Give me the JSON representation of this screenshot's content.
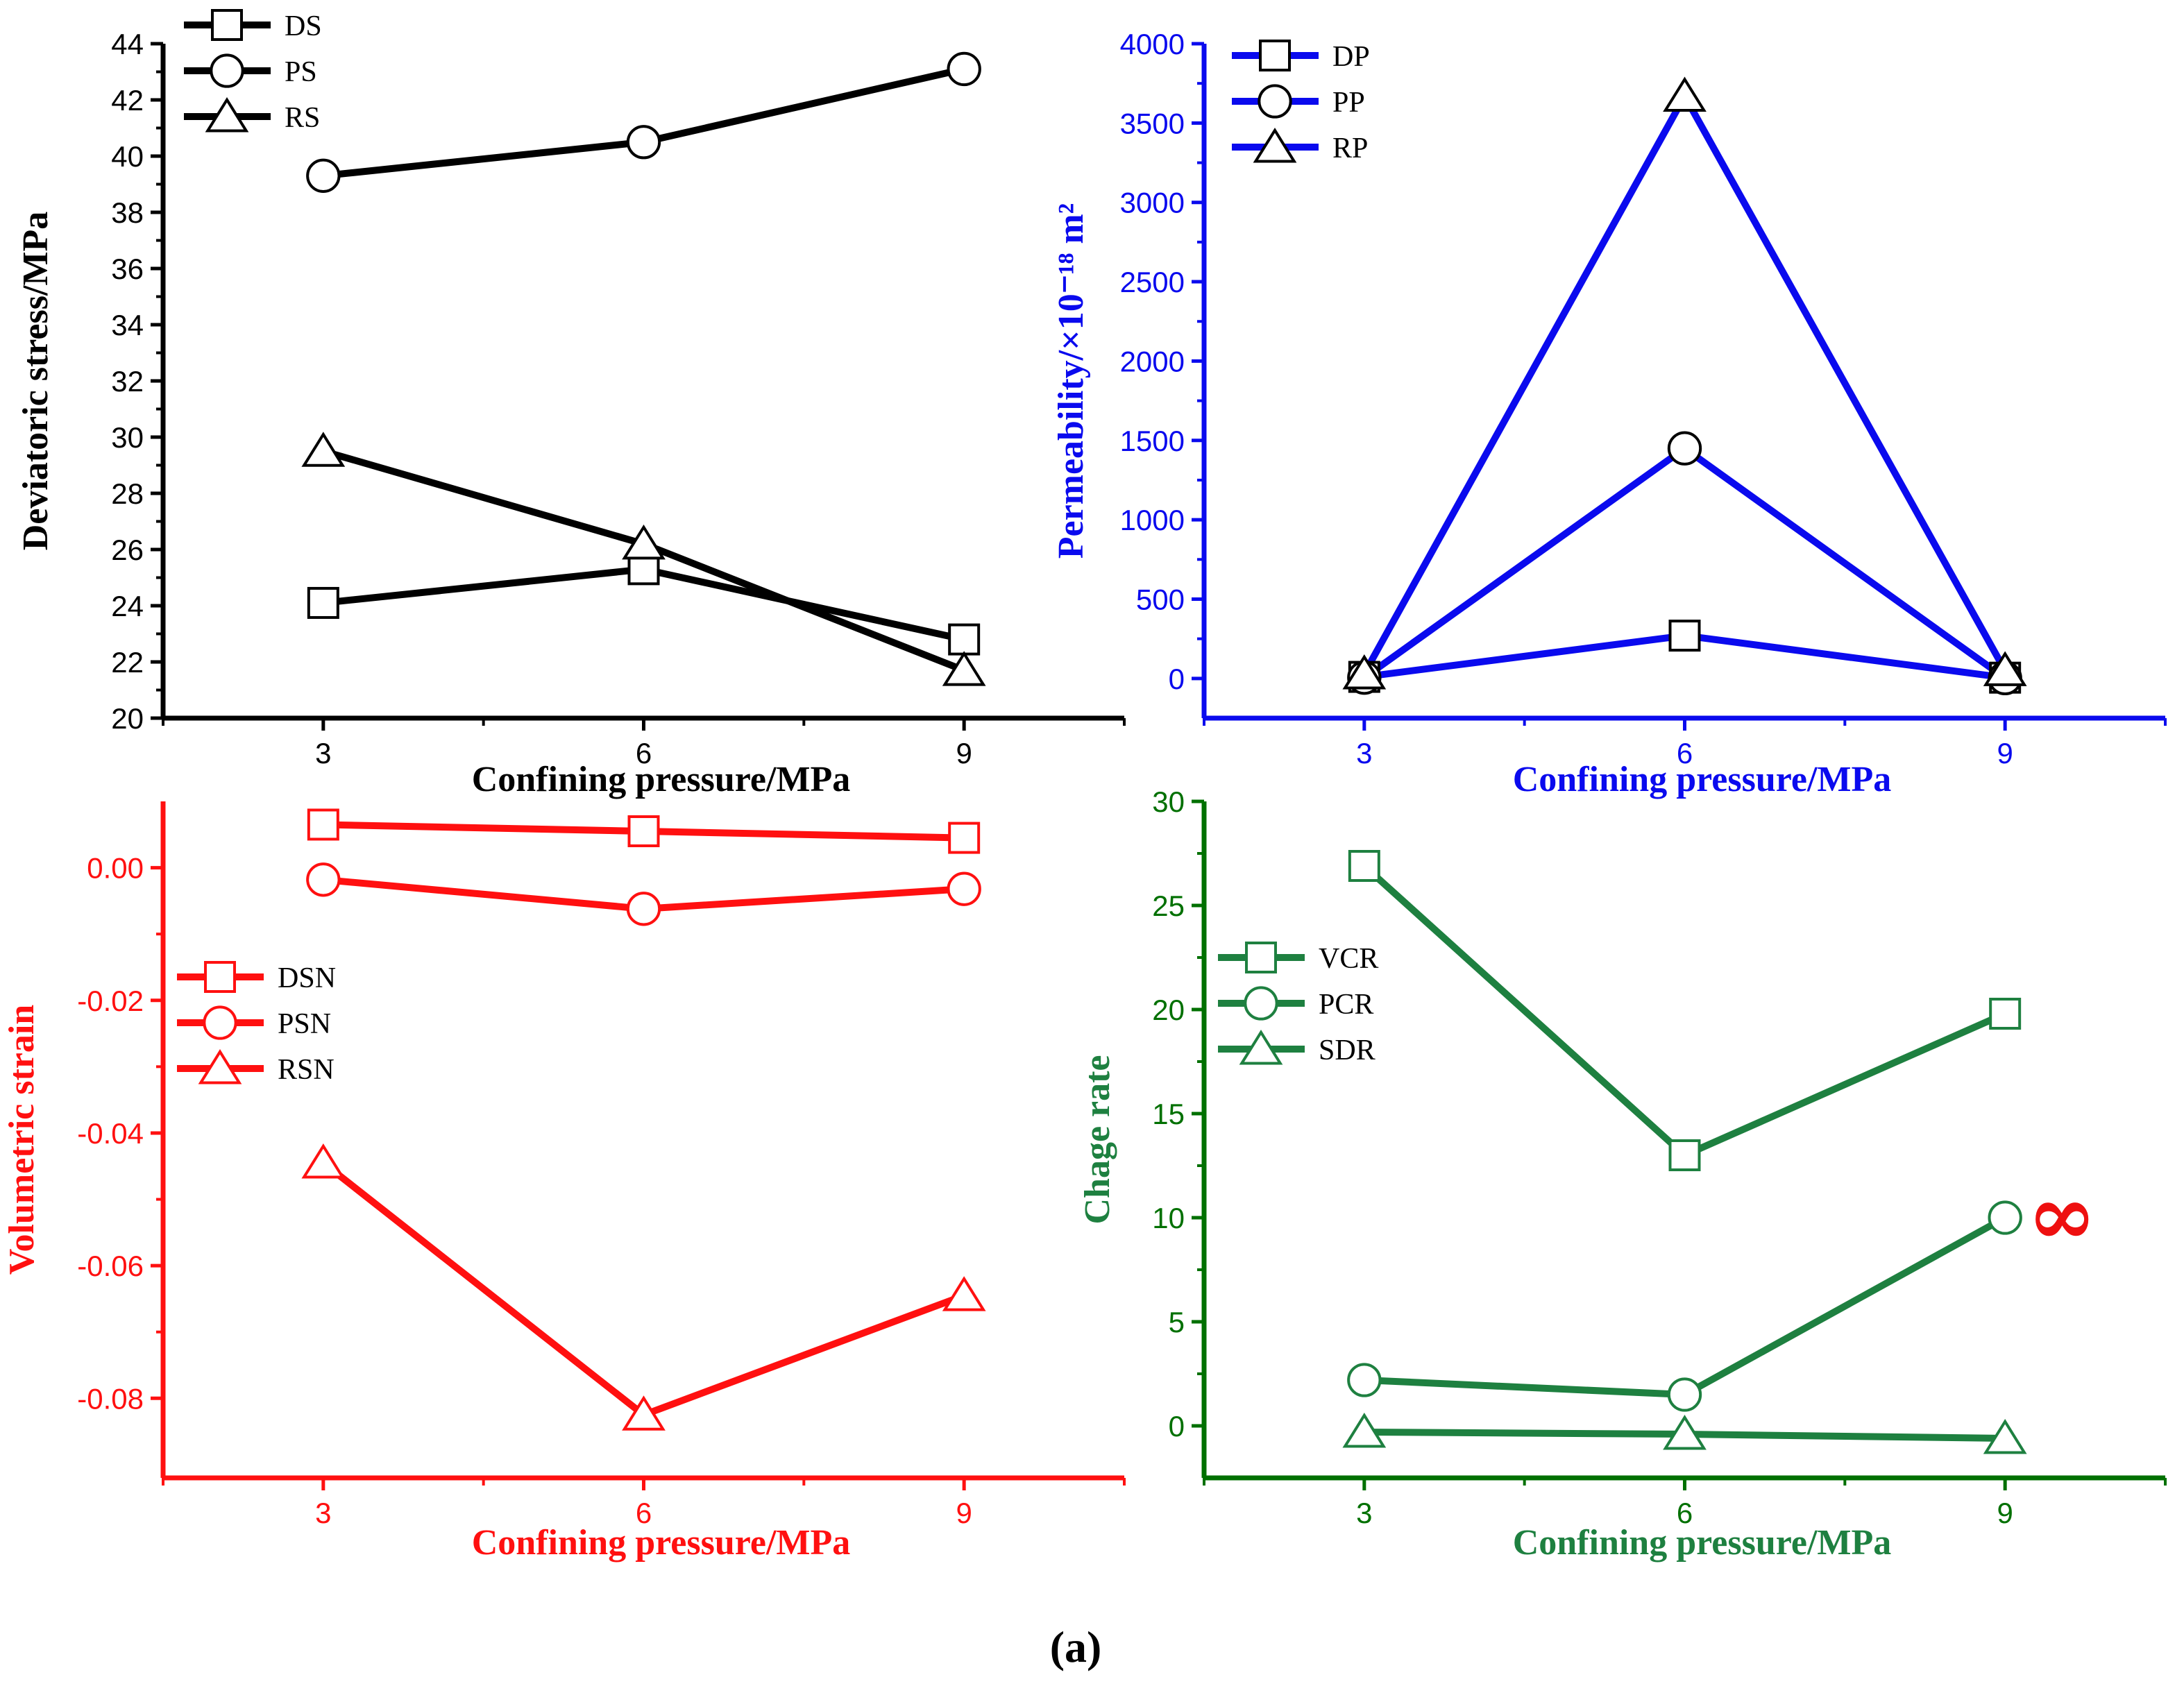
{
  "figure_label": "(a)",
  "chart_data": [
    {
      "id": "stress",
      "type": "line",
      "title": "",
      "xlabel": "Confining pressure/MPa",
      "ylabel": "Deviatoric stress/MPa",
      "color": "#000000",
      "x": [
        3,
        6,
        9
      ],
      "xlim": [
        1.5,
        10.5
      ],
      "xticks": [
        3,
        6,
        9
      ],
      "xtick_labels": [
        "3",
        "6",
        "9"
      ],
      "ylim": [
        20,
        44
      ],
      "yticks": [
        20,
        22,
        24,
        26,
        28,
        30,
        32,
        34,
        36,
        38,
        40,
        42,
        44
      ],
      "ytick_labels": [
        "20",
        "22",
        "24",
        "26",
        "28",
        "30",
        "32",
        "34",
        "36",
        "38",
        "40",
        "42",
        "44"
      ],
      "legend_position": "top-left",
      "series": [
        {
          "name": "DS",
          "marker": "square",
          "values": [
            24.1,
            25.3,
            22.8
          ]
        },
        {
          "name": "PS",
          "marker": "circle",
          "values": [
            39.3,
            40.5,
            43.1
          ]
        },
        {
          "name": "RS",
          "marker": "triangle",
          "values": [
            29.5,
            26.2,
            21.7
          ]
        }
      ]
    },
    {
      "id": "permeability",
      "type": "line",
      "title": "",
      "xlabel": "Confining pressure/MPa",
      "ylabel": "Permeability/×10⁻¹⁸ m²",
      "color": "#0a0aee",
      "x": [
        3,
        6,
        9
      ],
      "xlim": [
        1.5,
        10.5
      ],
      "xticks": [
        3,
        6,
        9
      ],
      "xtick_labels": [
        "3",
        "6",
        "9"
      ],
      "ylim": [
        -250,
        4000
      ],
      "yticks": [
        0,
        500,
        1000,
        1500,
        2000,
        2500,
        3000,
        3500,
        4000
      ],
      "ytick_labels": [
        "0",
        "500",
        "1000",
        "1500",
        "2000",
        "2500",
        "3000",
        "3500",
        "4000"
      ],
      "legend_position": "top-left",
      "series": [
        {
          "name": "DP",
          "marker": "square",
          "values": [
            10,
            270,
            5
          ]
        },
        {
          "name": "PP",
          "marker": "circle",
          "values": [
            5,
            1450,
            2
          ]
        },
        {
          "name": "RP",
          "marker": "triangle",
          "values": [
            30,
            3670,
            50
          ]
        }
      ]
    },
    {
      "id": "strain",
      "type": "line",
      "title": "",
      "xlabel": "Confining pressure/MPa",
      "ylabel": "Volumetric strain",
      "color": "#ff1010",
      "x": [
        3,
        6,
        9
      ],
      "xlim": [
        1.5,
        10.5
      ],
      "xticks": [
        3,
        6,
        9
      ],
      "xtick_labels": [
        "3",
        "6",
        "9"
      ],
      "ylim": [
        -0.092,
        0.01
      ],
      "yticks": [
        -0.08,
        -0.06,
        -0.04,
        -0.02,
        0.0
      ],
      "ytick_labels": [
        "-0.08",
        "-0.06",
        "-0.04",
        "-0.02",
        "0.00"
      ],
      "legend_position": "center-left",
      "series": [
        {
          "name": "DSN",
          "marker": "square",
          "values": [
            0.0065,
            0.0055,
            0.0045
          ]
        },
        {
          "name": "PSN",
          "marker": "circle",
          "values": [
            -0.0018,
            -0.0062,
            -0.0032
          ]
        },
        {
          "name": "RSN",
          "marker": "triangle",
          "values": [
            -0.0445,
            -0.0825,
            -0.0645
          ]
        }
      ]
    },
    {
      "id": "change_rate",
      "type": "line",
      "title": "",
      "xlabel": "Confining pressure/MPa",
      "ylabel": "Chage rate",
      "color": "#1e8040",
      "axis_color": "#007000",
      "x": [
        3,
        6,
        9
      ],
      "xlim": [
        1.5,
        10.5
      ],
      "xticks": [
        3,
        6,
        9
      ],
      "xtick_labels": [
        "3",
        "6",
        "9"
      ],
      "ylim": [
        -2.5,
        30
      ],
      "yticks": [
        0,
        5,
        10,
        15,
        20,
        25,
        30
      ],
      "ytick_labels": [
        "0",
        "5",
        "10",
        "15",
        "20",
        "25",
        "30"
      ],
      "legend_position": "top-left",
      "annotation": {
        "text": "∞",
        "color": "#ee1010",
        "x": 9
      },
      "series": [
        {
          "name": "VCR",
          "marker": "square",
          "values": [
            26.9,
            13.0,
            19.8
          ]
        },
        {
          "name": "PCR",
          "marker": "circle",
          "values": [
            2.2,
            1.5,
            10.0
          ]
        },
        {
          "name": "SDR",
          "marker": "triangle",
          "values": [
            -0.3,
            -0.4,
            -0.6
          ]
        }
      ]
    }
  ]
}
